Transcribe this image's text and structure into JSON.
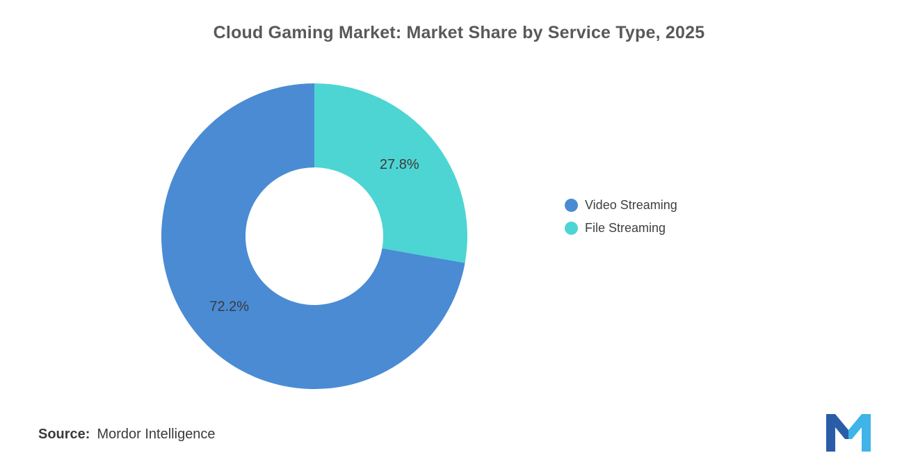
{
  "title": "Cloud Gaming Market: Market Share by Service Type, 2025",
  "chart_data": {
    "type": "pie",
    "subtype": "donut",
    "title": "Cloud Gaming Market: Market Share by Service Type, 2025",
    "labels": [
      "Video Streaming",
      "File Streaming"
    ],
    "values": [
      72.2,
      27.8
    ],
    "value_labels": [
      "72.2%",
      "27.8%"
    ],
    "colors": [
      "#4A8BD4",
      "#4DD5D3"
    ],
    "start_angle_deg": 90,
    "direction": "counterclockwise",
    "inner_radius_ratio": 0.45,
    "legend_position": "right",
    "value_label_color": "#3a3a3a"
  },
  "legend": {
    "items": [
      {
        "label": "Video Streaming",
        "color": "#4A8BD4"
      },
      {
        "label": "File Streaming",
        "color": "#4DD5D3"
      }
    ]
  },
  "source": {
    "label": "Source:",
    "text": "Mordor Intelligence"
  },
  "logo": {
    "name": "Mordor Intelligence logo",
    "color_left": "#2A5DA8",
    "color_right": "#3EB4E8"
  }
}
